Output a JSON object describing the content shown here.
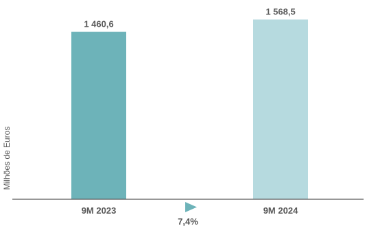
{
  "chart_data": {
    "type": "bar",
    "categories": [
      "9M 2023",
      "9M 2024"
    ],
    "values": [
      1460.6,
      1568.5
    ],
    "value_labels": [
      "1 460,6",
      "1 568,5"
    ],
    "colors": [
      "#6db3b9",
      "#b6dadf"
    ],
    "ylabel": "Milhões de Euros",
    "ylim": [
      0,
      1600
    ],
    "grid": false,
    "legend": "none",
    "annotation": {
      "text": "7,4%",
      "icon": "right-triangle-icon",
      "color": "#6db3b9"
    }
  }
}
